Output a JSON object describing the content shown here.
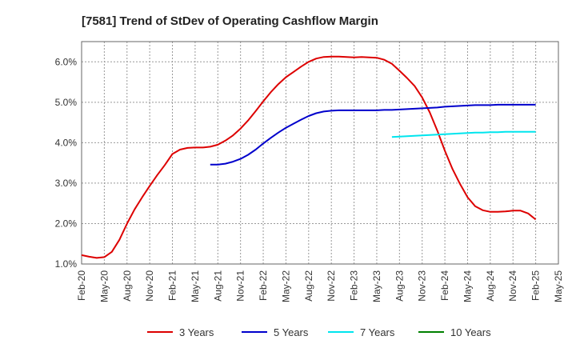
{
  "chart_data": {
    "type": "line",
    "title": "[7581]  Trend of StDev of Operating Cashflow Margin",
    "ylim": [
      1.0,
      6.5
    ],
    "y_ticks": [
      "1.0%",
      "2.0%",
      "3.0%",
      "4.0%",
      "5.0%",
      "6.0%"
    ],
    "y_tick_values": [
      1.0,
      2.0,
      3.0,
      4.0,
      5.0,
      6.0
    ],
    "x_ticks": [
      "Feb-20",
      "May-20",
      "Aug-20",
      "Nov-20",
      "Feb-21",
      "May-21",
      "Aug-21",
      "Nov-21",
      "Feb-22",
      "May-22",
      "Aug-22",
      "Nov-22",
      "Feb-23",
      "May-23",
      "Aug-23",
      "Nov-23",
      "Feb-24",
      "May-24",
      "Aug-24",
      "Nov-24",
      "Feb-25",
      "May-25"
    ],
    "x_month_range": [
      "2020-02",
      "2025-05"
    ],
    "grid": true,
    "legend_position": "bottom",
    "series": [
      {
        "name": "3 Years",
        "color": "#dd0000",
        "points": [
          [
            "2020-02",
            1.22
          ],
          [
            "2020-03",
            1.18
          ],
          [
            "2020-04",
            1.15
          ],
          [
            "2020-05",
            1.17
          ],
          [
            "2020-06",
            1.3
          ],
          [
            "2020-07",
            1.6
          ],
          [
            "2020-08",
            2.0
          ],
          [
            "2020-09",
            2.35
          ],
          [
            "2020-10",
            2.65
          ],
          [
            "2020-11",
            2.93
          ],
          [
            "2020-12",
            3.2
          ],
          [
            "2021-01",
            3.45
          ],
          [
            "2021-02",
            3.72
          ],
          [
            "2021-03",
            3.83
          ],
          [
            "2021-04",
            3.87
          ],
          [
            "2021-05",
            3.88
          ],
          [
            "2021-06",
            3.88
          ],
          [
            "2021-07",
            3.9
          ],
          [
            "2021-08",
            3.95
          ],
          [
            "2021-09",
            4.05
          ],
          [
            "2021-10",
            4.18
          ],
          [
            "2021-11",
            4.35
          ],
          [
            "2021-12",
            4.55
          ],
          [
            "2022-01",
            4.78
          ],
          [
            "2022-02",
            5.02
          ],
          [
            "2022-03",
            5.25
          ],
          [
            "2022-04",
            5.45
          ],
          [
            "2022-05",
            5.62
          ],
          [
            "2022-06",
            5.75
          ],
          [
            "2022-07",
            5.88
          ],
          [
            "2022-08",
            6.0
          ],
          [
            "2022-09",
            6.08
          ],
          [
            "2022-10",
            6.12
          ],
          [
            "2022-11",
            6.13
          ],
          [
            "2022-12",
            6.13
          ],
          [
            "2023-01",
            6.12
          ],
          [
            "2023-02",
            6.11
          ],
          [
            "2023-03",
            6.12
          ],
          [
            "2023-04",
            6.11
          ],
          [
            "2023-05",
            6.1
          ],
          [
            "2023-06",
            6.05
          ],
          [
            "2023-07",
            5.95
          ],
          [
            "2023-08",
            5.78
          ],
          [
            "2023-09",
            5.6
          ],
          [
            "2023-10",
            5.4
          ],
          [
            "2023-11",
            5.12
          ],
          [
            "2023-12",
            4.75
          ],
          [
            "2024-01",
            4.3
          ],
          [
            "2024-02",
            3.8
          ],
          [
            "2024-03",
            3.35
          ],
          [
            "2024-04",
            2.98
          ],
          [
            "2024-05",
            2.65
          ],
          [
            "2024-06",
            2.43
          ],
          [
            "2024-07",
            2.33
          ],
          [
            "2024-08",
            2.29
          ],
          [
            "2024-09",
            2.29
          ],
          [
            "2024-10",
            2.3
          ],
          [
            "2024-11",
            2.32
          ],
          [
            "2024-12",
            2.32
          ],
          [
            "2025-01",
            2.25
          ],
          [
            "2025-02",
            2.1
          ]
        ]
      },
      {
        "name": "5 Years",
        "color": "#0000cc",
        "points": [
          [
            "2021-07",
            3.46
          ],
          [
            "2021-08",
            3.46
          ],
          [
            "2021-09",
            3.48
          ],
          [
            "2021-10",
            3.53
          ],
          [
            "2021-11",
            3.6
          ],
          [
            "2021-12",
            3.7
          ],
          [
            "2022-01",
            3.83
          ],
          [
            "2022-02",
            3.98
          ],
          [
            "2022-03",
            4.12
          ],
          [
            "2022-04",
            4.25
          ],
          [
            "2022-05",
            4.37
          ],
          [
            "2022-06",
            4.47
          ],
          [
            "2022-07",
            4.57
          ],
          [
            "2022-08",
            4.66
          ],
          [
            "2022-09",
            4.73
          ],
          [
            "2022-10",
            4.77
          ],
          [
            "2022-11",
            4.79
          ],
          [
            "2022-12",
            4.8
          ],
          [
            "2023-01",
            4.8
          ],
          [
            "2023-02",
            4.8
          ],
          [
            "2023-03",
            4.8
          ],
          [
            "2023-04",
            4.8
          ],
          [
            "2023-05",
            4.8
          ],
          [
            "2023-06",
            4.81
          ],
          [
            "2023-07",
            4.81
          ],
          [
            "2023-08",
            4.82
          ],
          [
            "2023-09",
            4.83
          ],
          [
            "2023-10",
            4.84
          ],
          [
            "2023-11",
            4.85
          ],
          [
            "2023-12",
            4.86
          ],
          [
            "2024-01",
            4.87
          ],
          [
            "2024-02",
            4.89
          ],
          [
            "2024-03",
            4.9
          ],
          [
            "2024-04",
            4.91
          ],
          [
            "2024-05",
            4.92
          ],
          [
            "2024-06",
            4.93
          ],
          [
            "2024-07",
            4.93
          ],
          [
            "2024-08",
            4.93
          ],
          [
            "2024-09",
            4.94
          ],
          [
            "2024-10",
            4.94
          ],
          [
            "2024-11",
            4.94
          ],
          [
            "2024-12",
            4.94
          ],
          [
            "2025-01",
            4.94
          ],
          [
            "2025-02",
            4.94
          ]
        ]
      },
      {
        "name": "7 Years",
        "color": "#00e5ee",
        "points": [
          [
            "2023-07",
            4.14
          ],
          [
            "2023-08",
            4.15
          ],
          [
            "2023-09",
            4.16
          ],
          [
            "2023-10",
            4.17
          ],
          [
            "2023-11",
            4.18
          ],
          [
            "2023-12",
            4.19
          ],
          [
            "2024-01",
            4.2
          ],
          [
            "2024-02",
            4.21
          ],
          [
            "2024-03",
            4.22
          ],
          [
            "2024-04",
            4.23
          ],
          [
            "2024-05",
            4.24
          ],
          [
            "2024-06",
            4.25
          ],
          [
            "2024-07",
            4.25
          ],
          [
            "2024-08",
            4.26
          ],
          [
            "2024-09",
            4.26
          ],
          [
            "2024-10",
            4.27
          ],
          [
            "2024-11",
            4.27
          ],
          [
            "2024-12",
            4.27
          ],
          [
            "2025-01",
            4.27
          ],
          [
            "2025-02",
            4.27
          ]
        ]
      },
      {
        "name": "10 Years",
        "color": "#008000",
        "points": []
      }
    ]
  }
}
